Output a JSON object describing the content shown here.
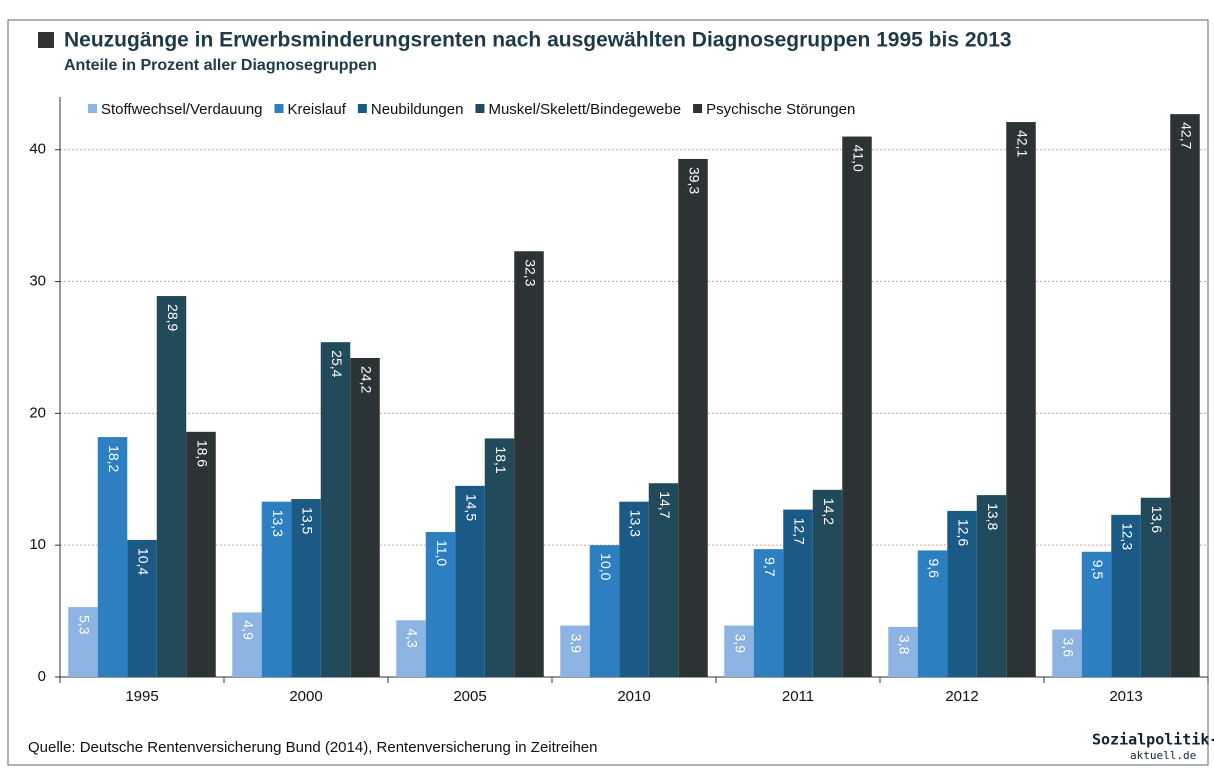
{
  "chart_data": {
    "type": "bar",
    "title": "Neuzugänge in Erwerbsminderungsrenten nach ausgewählten Diagnosegruppen 1995 bis 2013",
    "subtitle": "Anteile in Prozent aller Diagnosegruppen",
    "source": "Quelle: Deutsche Rentenversicherung Bund (2014), Rentenversicherung in Zeitreihen",
    "logo": [
      "Sozialpolitik-",
      "aktuell.de"
    ],
    "categories": [
      "1995",
      "2000",
      "2005",
      "2010",
      "2011",
      "2012",
      "2013"
    ],
    "series": [
      {
        "name": "Stoffwechsel/Verdauung",
        "color": "#8db3e2",
        "values": [
          5.3,
          4.9,
          4.3,
          3.9,
          3.9,
          3.8,
          3.6
        ],
        "value_labels": [
          "5,3",
          "4,9",
          "4,3",
          "3,9",
          "3,9",
          "3,8",
          "3,6"
        ]
      },
      {
        "name": "Kreislauf",
        "color": "#2e7fc0",
        "values": [
          18.2,
          13.3,
          11.0,
          10.0,
          9.7,
          9.6,
          9.5
        ],
        "value_labels": [
          "18,2",
          "13,3",
          "11,0",
          "10,0",
          "9,7",
          "9,6",
          "9,5"
        ]
      },
      {
        "name": "Neubildungen",
        "color": "#1b5a85",
        "values": [
          10.4,
          13.5,
          14.5,
          13.3,
          12.7,
          12.6,
          12.3
        ],
        "value_labels": [
          "10,4",
          "13,5",
          "14,5",
          "13,3",
          "12,7",
          "12,6",
          "12,3"
        ]
      },
      {
        "name": "Muskel/Skelett/Bindegewebe",
        "color": "#214b5a",
        "values": [
          28.9,
          25.4,
          18.1,
          14.7,
          14.2,
          13.8,
          13.6
        ],
        "value_labels": [
          "28,9",
          "25,4",
          "18,1",
          "14,7",
          "14,2",
          "13,8",
          "13,6"
        ]
      },
      {
        "name": "Psychische Störungen",
        "color": "#2c3335",
        "values": [
          18.6,
          24.2,
          32.3,
          39.3,
          41.0,
          42.1,
          42.7
        ],
        "value_labels": [
          "18,6",
          "24,2",
          "32,3",
          "39,3",
          "41,0",
          "42,1",
          "42,7"
        ]
      }
    ],
    "ylim": [
      0,
      44
    ],
    "yticks": [
      0,
      10,
      20,
      30,
      40
    ],
    "grid": true,
    "legend": "top"
  }
}
